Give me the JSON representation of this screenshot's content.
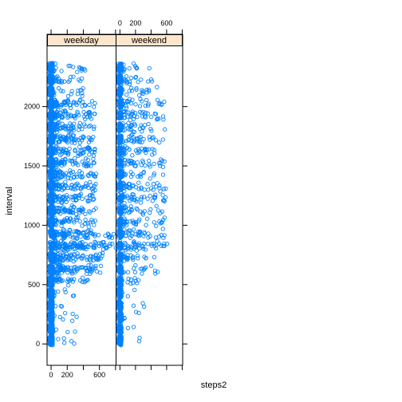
{
  "chart_data": {
    "type": "scatter",
    "xlabel": "steps2",
    "ylabel": "interval",
    "xlim": [
      -50,
      806
    ],
    "ylim": [
      -180,
      2515
    ],
    "x_ticks": [
      0,
      200,
      600
    ],
    "y_ticks": [
      0,
      500,
      1000,
      1500,
      2000
    ],
    "grid": false,
    "panels": [
      {
        "name": "weekday",
        "x_axis_side": "bottom"
      },
      {
        "name": "weekend",
        "x_axis_side": "top"
      }
    ],
    "colors": {
      "points": "#0080ff",
      "strip": "#ffe5cc",
      "frame": "#000000"
    }
  }
}
